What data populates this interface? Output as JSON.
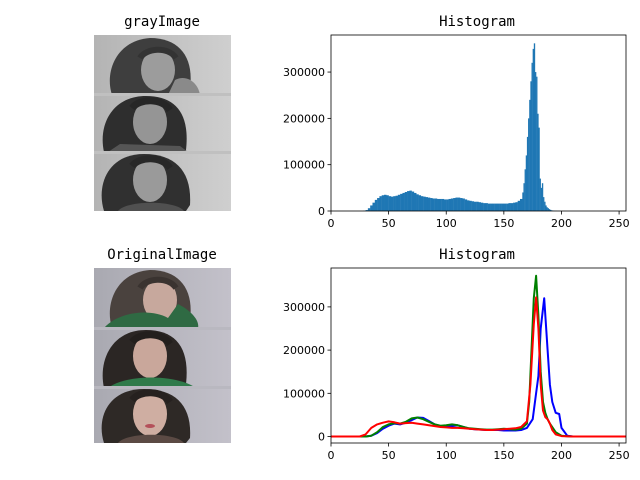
{
  "figure": {
    "panels": {
      "gray_image": {
        "title": "grayImage"
      },
      "original_image": {
        "title": "OriginalImage"
      }
    }
  },
  "chart_data": [
    {
      "type": "bar",
      "title": "Histogram",
      "xlabel": "",
      "ylabel": "",
      "xlim": [
        0,
        256
      ],
      "ylim": [
        0,
        380000
      ],
      "x_ticks": [
        0,
        50,
        100,
        150,
        200,
        250
      ],
      "y_ticks": [
        0,
        100000,
        200000,
        300000
      ],
      "y_tick_labels": [
        "0",
        "100000",
        "200000",
        "300000"
      ],
      "color": "#1f77b4",
      "x": [
        28,
        30,
        32,
        34,
        36,
        38,
        40,
        42,
        44,
        46,
        48,
        50,
        52,
        54,
        56,
        58,
        60,
        62,
        64,
        66,
        68,
        70,
        72,
        74,
        76,
        78,
        80,
        82,
        84,
        86,
        88,
        90,
        92,
        94,
        96,
        98,
        100,
        102,
        104,
        106,
        108,
        110,
        112,
        114,
        116,
        118,
        120,
        122,
        124,
        126,
        128,
        130,
        132,
        134,
        136,
        138,
        140,
        142,
        144,
        146,
        148,
        150,
        152,
        154,
        156,
        158,
        160,
        162,
        164,
        166,
        167,
        168,
        169,
        170,
        171,
        172,
        173,
        174,
        175,
        176,
        177,
        178,
        179,
        180,
        181,
        182,
        183,
        184,
        185,
        186,
        187,
        188,
        189,
        190,
        191,
        192,
        193,
        194,
        196,
        198
      ],
      "values": [
        500,
        2000,
        6000,
        12000,
        18000,
        24000,
        28000,
        32000,
        34000,
        35000,
        34000,
        32000,
        31000,
        32000,
        33000,
        35000,
        37000,
        39000,
        41000,
        43000,
        44000,
        42000,
        39000,
        36000,
        34000,
        32000,
        31000,
        30000,
        29000,
        28000,
        27000,
        27000,
        26000,
        26000,
        26000,
        25000,
        25000,
        26000,
        27000,
        28000,
        29000,
        29000,
        28000,
        27000,
        25000,
        23000,
        22000,
        21000,
        20000,
        20000,
        19000,
        18000,
        17000,
        17000,
        16000,
        16000,
        16000,
        16000,
        16000,
        16000,
        16000,
        16000,
        16000,
        17000,
        17000,
        18000,
        19000,
        22000,
        26000,
        40000,
        60000,
        90000,
        120000,
        160000,
        200000,
        240000,
        280000,
        320000,
        350000,
        362000,
        300000,
        290000,
        210000,
        180000,
        70000,
        50000,
        60000,
        30000,
        20000,
        12000,
        8000,
        6000,
        4000,
        2500,
        1500,
        1000,
        600,
        400,
        200,
        100
      ]
    },
    {
      "type": "line",
      "title": "Histogram",
      "xlabel": "",
      "ylabel": "",
      "xlim": [
        0,
        256
      ],
      "ylim": [
        -15000,
        390000
      ],
      "x_ticks": [
        0,
        50,
        100,
        150,
        200,
        250
      ],
      "y_ticks": [
        0,
        100000,
        200000,
        300000
      ],
      "y_tick_labels": [
        "0",
        "100000",
        "200000",
        "300000"
      ],
      "series": [
        {
          "color": "#0000ff",
          "x": [
            0,
            30,
            35,
            40,
            45,
            50,
            55,
            60,
            65,
            70,
            75,
            80,
            85,
            90,
            95,
            100,
            105,
            110,
            115,
            120,
            125,
            130,
            135,
            140,
            145,
            150,
            155,
            160,
            165,
            170,
            175,
            178,
            180,
            182,
            185,
            188,
            190,
            192,
            195,
            198,
            200,
            205,
            210,
            220,
            256
          ],
          "values": [
            0,
            0,
            2000,
            8000,
            18000,
            25000,
            30000,
            28000,
            32000,
            38000,
            44000,
            43000,
            36000,
            28000,
            24000,
            22000,
            24000,
            26000,
            22000,
            18000,
            17000,
            16000,
            15000,
            15000,
            15000,
            14000,
            14000,
            14000,
            15000,
            20000,
            40000,
            100000,
            140000,
            250000,
            320000,
            200000,
            120000,
            80000,
            55000,
            52000,
            20000,
            2000,
            0,
            0,
            0
          ]
        },
        {
          "color": "#008000",
          "x": [
            0,
            30,
            35,
            40,
            45,
            50,
            55,
            60,
            65,
            70,
            75,
            80,
            85,
            90,
            95,
            100,
            105,
            110,
            115,
            120,
            125,
            130,
            135,
            140,
            145,
            150,
            155,
            160,
            165,
            170,
            172,
            174,
            176,
            178,
            180,
            182,
            184,
            186,
            188,
            190,
            195,
            200,
            205,
            210,
            256
          ],
          "values": [
            0,
            0,
            2000,
            10000,
            22000,
            28000,
            31000,
            30000,
            34000,
            42000,
            44000,
            40000,
            34000,
            28000,
            25000,
            26000,
            28000,
            26000,
            22000,
            19000,
            18000,
            17000,
            16000,
            16000,
            17000,
            18000,
            17000,
            16000,
            18000,
            30000,
            80000,
            200000,
            320000,
            372000,
            280000,
            150000,
            80000,
            55000,
            40000,
            30000,
            10000,
            2000,
            500,
            0,
            0
          ]
        },
        {
          "color": "#ff0000",
          "x": [
            0,
            25,
            30,
            35,
            40,
            45,
            50,
            55,
            60,
            65,
            70,
            75,
            80,
            85,
            90,
            95,
            100,
            105,
            110,
            115,
            120,
            125,
            130,
            135,
            140,
            145,
            150,
            155,
            160,
            165,
            170,
            173,
            176,
            178,
            180,
            182,
            184,
            186,
            188,
            190,
            192,
            195,
            200,
            210,
            256
          ],
          "values": [
            0,
            0,
            5000,
            20000,
            28000,
            32000,
            35000,
            33000,
            30000,
            31000,
            32000,
            30000,
            28000,
            26000,
            24000,
            22000,
            21000,
            20000,
            20000,
            19000,
            18000,
            17000,
            16000,
            15000,
            15000,
            16000,
            17000,
            18000,
            19000,
            22000,
            35000,
            120000,
            260000,
            322000,
            250000,
            120000,
            60000,
            45000,
            40000,
            30000,
            15000,
            5000,
            1000,
            0,
            0
          ]
        }
      ]
    }
  ]
}
